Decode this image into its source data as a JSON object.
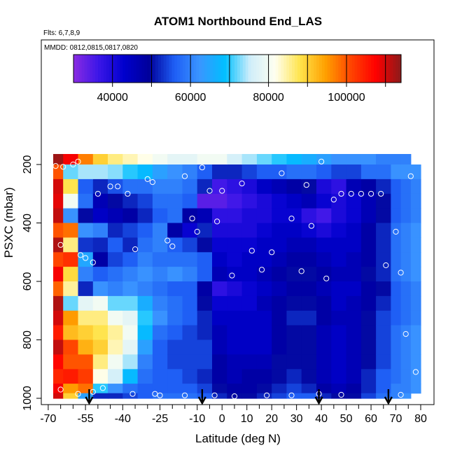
{
  "chart_data": {
    "type": "heatmap",
    "title": "ATOM1 Northbound End_LAS",
    "flights_label": "Flts: 6,7,8,9",
    "dates_label": "MMDD: 0812,0815,0817,0820",
    "xlabel": "Latitude (deg N)",
    "ylabel": "PSXC (mbar)",
    "xlim": [
      -70,
      82
    ],
    "ylim": [
      1000,
      100
    ],
    "x_ticks": [
      "-70",
      "-55",
      "-40",
      "-25",
      "-10",
      "0",
      "10",
      "20",
      "30",
      "40",
      "50",
      "60",
      "70",
      "80"
    ],
    "x_tick_values": [
      -70,
      -55,
      -40,
      -25,
      -10,
      0,
      10,
      20,
      30,
      40,
      50,
      60,
      70,
      80
    ],
    "x_minor_ticks": [
      -65,
      -60,
      -50,
      -45,
      -35,
      -30,
      -20,
      -15,
      -5,
      5,
      15,
      25,
      35,
      45,
      55,
      65,
      75
    ],
    "y_ticks": [
      "1000",
      "800",
      "600",
      "400",
      "200"
    ],
    "y_tick_values": [
      1000,
      800,
      600,
      400,
      200
    ],
    "colorbar": {
      "range": [
        30000,
        114000
      ],
      "tick_values": [
        40000,
        60000,
        80000,
        100000
      ],
      "tick_labels": [
        "40000",
        "60000",
        "80000",
        "100000"
      ],
      "colors": [
        "#8a2be2",
        "#3b16e8",
        "#0000cd",
        "#00009a",
        "#1e5ef5",
        "#3a95ff",
        "#00bfff",
        "#cfeefa",
        "#fffff0",
        "#ffe34a",
        "#ffa000",
        "#ff4500",
        "#ff0000",
        "#8b1a1a"
      ]
    },
    "columns": [
      {
        "lat_start": -68,
        "lat_end": -64,
        "values": [
          113000,
          100000,
          110000,
          109000,
          111000,
          100000,
          112000,
          101000,
          108000,
          99000,
          112000,
          110000,
          105000,
          111000,
          107000,
          104000,
          108000,
          110000
        ]
      },
      {
        "lat_start": -64,
        "lat_end": -58,
        "values": [
          108000,
          72000,
          88000,
          80000,
          62000,
          98000,
          86000,
          103000,
          89000,
          85000,
          72000,
          95000,
          92000,
          101000,
          100000,
          105000,
          95000,
          90000
        ]
      },
      {
        "lat_start": -58,
        "lat_end": -52,
        "values": [
          97000,
          74000,
          56000,
          58000,
          50000,
          62000,
          53000,
          65000,
          60000,
          52000,
          78000,
          86000,
          90000,
          93000,
          100000,
          102000,
          98000,
          64000
        ]
      },
      {
        "lat_start": -52,
        "lat_end": -46,
        "values": [
          90000,
          74000,
          52000,
          46000,
          44000,
          60000,
          52000,
          48000,
          56000,
          62000,
          80000,
          86000,
          88000,
          90000,
          86000,
          82000,
          70000,
          52000
        ]
      },
      {
        "lat_start": -46,
        "lat_end": -40,
        "values": [
          86000,
          73000,
          55000,
          50000,
          46000,
          52000,
          56000,
          54000,
          58000,
          60000,
          72000,
          80000,
          85000,
          84000,
          80000,
          76000,
          62000,
          52000
        ]
      },
      {
        "lat_start": -40,
        "lat_end": -34,
        "values": [
          84000,
          70000,
          58000,
          52000,
          48000,
          54000,
          52000,
          56000,
          60000,
          62000,
          72000,
          78000,
          80000,
          78000,
          74000,
          68000,
          58000,
          54000
        ]
      },
      {
        "lat_start": -34,
        "lat_end": -28,
        "values": [
          82000,
          68000,
          58000,
          54000,
          52000,
          56000,
          58000,
          60000,
          62000,
          60000,
          66000,
          70000,
          68000,
          64000,
          60000,
          58000,
          56000,
          56000
        ]
      },
      {
        "lat_start": -28,
        "lat_end": -22,
        "values": [
          80000,
          64000,
          60000,
          58000,
          56000,
          60000,
          60000,
          58000,
          60000,
          58000,
          60000,
          62000,
          58000,
          56000,
          56000,
          56000,
          56000,
          58000
        ]
      },
      {
        "lat_start": -22,
        "lat_end": -16,
        "values": [
          78000,
          62000,
          60000,
          58000,
          58000,
          48000,
          56000,
          58000,
          62000,
          56000,
          58000,
          58000,
          56000,
          54000,
          54000,
          56000,
          56000,
          58000
        ]
      },
      {
        "lat_start": -16,
        "lat_end": -10,
        "values": [
          78000,
          60000,
          58000,
          56000,
          48000,
          42000,
          54000,
          58000,
          60000,
          56000,
          56000,
          56000,
          54000,
          54000,
          54000,
          54000,
          56000,
          58000
        ]
      },
      {
        "lat_start": -10,
        "lat_end": -4,
        "values": [
          80000,
          56000,
          52000,
          34000,
          46000,
          52000,
          50000,
          56000,
          56000,
          48000,
          50000,
          52000,
          52000,
          54000,
          54000,
          52000,
          54000,
          56000
        ]
      },
      {
        "lat_start": -4,
        "lat_end": 2,
        "values": [
          80000,
          52000,
          36000,
          34000,
          38000,
          40000,
          42000,
          44000,
          46000,
          38000,
          42000,
          44000,
          46000,
          46000,
          48000,
          48000,
          50000,
          52000
        ]
      },
      {
        "lat_start": 2,
        "lat_end": 8,
        "values": [
          76000,
          52000,
          38000,
          36000,
          38000,
          40000,
          42000,
          42000,
          44000,
          40000,
          42000,
          44000,
          44000,
          44000,
          46000,
          46000,
          48000,
          50000
        ]
      },
      {
        "lat_start": 8,
        "lat_end": 14,
        "values": [
          74000,
          54000,
          40000,
          38000,
          40000,
          40000,
          42000,
          44000,
          44000,
          42000,
          42000,
          44000,
          44000,
          44000,
          46000,
          48000,
          48000,
          50000
        ]
      },
      {
        "lat_start": 14,
        "lat_end": 20,
        "values": [
          72000,
          56000,
          44000,
          40000,
          40000,
          42000,
          44000,
          44000,
          46000,
          44000,
          46000,
          44000,
          44000,
          44000,
          46000,
          48000,
          50000,
          52000
        ]
      },
      {
        "lat_start": 20,
        "lat_end": 26,
        "values": [
          70000,
          56000,
          46000,
          42000,
          42000,
          44000,
          44000,
          46000,
          48000,
          46000,
          48000,
          48000,
          48000,
          48000,
          50000,
          50000,
          52000,
          54000
        ]
      },
      {
        "lat_start": 26,
        "lat_end": 32,
        "values": [
          68000,
          58000,
          48000,
          44000,
          42000,
          44000,
          46000,
          48000,
          50000,
          48000,
          50000,
          52000,
          50000,
          50000,
          50000,
          52000,
          54000,
          56000
        ]
      },
      {
        "lat_start": 32,
        "lat_end": 38,
        "values": [
          66000,
          58000,
          50000,
          46000,
          38000,
          42000,
          46000,
          48000,
          50000,
          48000,
          50000,
          52000,
          50000,
          50000,
          50000,
          50000,
          52000,
          56000
        ]
      },
      {
        "lat_start": 38,
        "lat_end": 44,
        "values": [
          64000,
          56000,
          40000,
          42000,
          36000,
          40000,
          44000,
          46000,
          48000,
          46000,
          48000,
          48000,
          46000,
          46000,
          46000,
          46000,
          48000,
          52000
        ]
      },
      {
        "lat_start": 44,
        "lat_end": 50,
        "values": [
          62000,
          54000,
          38000,
          40000,
          40000,
          42000,
          44000,
          44000,
          46000,
          44000,
          44000,
          46000,
          44000,
          44000,
          44000,
          44000,
          46000,
          50000
        ]
      },
      {
        "lat_start": 50,
        "lat_end": 56,
        "values": [
          62000,
          54000,
          46000,
          42000,
          42000,
          44000,
          44000,
          46000,
          46000,
          44000,
          46000,
          46000,
          46000,
          46000,
          46000,
          46000,
          48000,
          50000
        ]
      },
      {
        "lat_start": 56,
        "lat_end": 62,
        "values": [
          62000,
          58000,
          48000,
          46000,
          46000,
          48000,
          48000,
          48000,
          50000,
          48000,
          48000,
          50000,
          50000,
          50000,
          50000,
          52000,
          52000,
          54000
        ]
      },
      {
        "lat_start": 62,
        "lat_end": 68,
        "values": [
          60000,
          58000,
          52000,
          50000,
          50000,
          52000,
          52000,
          52000,
          52000,
          50000,
          52000,
          54000,
          54000,
          54000,
          54000,
          56000,
          56000,
          58000
        ]
      },
      {
        "lat_start": 68,
        "lat_end": 72,
        "values": [
          60000,
          62000,
          56000,
          56000,
          56000,
          58000,
          58000,
          58000,
          58000,
          56000,
          56000,
          56000,
          58000,
          58000,
          58000,
          58000,
          60000,
          60000
        ]
      },
      {
        "lat_start": 72,
        "lat_end": 76,
        "values": [
          60000,
          62000,
          58000,
          58000,
          58000,
          60000,
          60000,
          60000,
          60000,
          58000,
          58000,
          58000,
          60000,
          60000,
          60000,
          60000,
          60000,
          62000
        ]
      },
      {
        "lat_start": 76,
        "lat_end": 80,
        "values": [
          null,
          62000,
          60000,
          60000,
          60000,
          62000,
          62000,
          62000,
          62000,
          60000,
          60000,
          60000,
          62000,
          62000,
          62000,
          62000,
          62000,
          null
        ]
      }
    ],
    "pressure_levels": [
      175,
      225,
      275,
      325,
      375,
      425,
      475,
      525,
      575,
      625,
      675,
      725,
      775,
      825,
      875,
      925,
      975,
      990
    ],
    "sample_points": [
      {
        "lat": -65,
        "p": 970
      },
      {
        "lat": -58,
        "p": 985
      },
      {
        "lat": -52,
        "p": 978
      },
      {
        "lat": -48,
        "p": 965
      },
      {
        "lat": -36,
        "p": 985
      },
      {
        "lat": -27,
        "p": 985
      },
      {
        "lat": -25,
        "p": 990
      },
      {
        "lat": -15,
        "p": 990
      },
      {
        "lat": -3,
        "p": 990
      },
      {
        "lat": 5,
        "p": 993
      },
      {
        "lat": 18,
        "p": 990
      },
      {
        "lat": 28,
        "p": 990
      },
      {
        "lat": 39,
        "p": 985
      },
      {
        "lat": 48,
        "p": 988
      },
      {
        "lat": 72,
        "p": 988
      },
      {
        "lat": -67,
        "p": 205
      },
      {
        "lat": -64,
        "p": 208
      },
      {
        "lat": -60,
        "p": 200
      },
      {
        "lat": -58,
        "p": 190
      },
      {
        "lat": -65,
        "p": 475
      },
      {
        "lat": -57,
        "p": 510
      },
      {
        "lat": -55,
        "p": 520
      },
      {
        "lat": -52,
        "p": 535
      },
      {
        "lat": -50,
        "p": 300
      },
      {
        "lat": -45,
        "p": 275
      },
      {
        "lat": -42,
        "p": 275
      },
      {
        "lat": -38,
        "p": 300
      },
      {
        "lat": -35,
        "p": 490
      },
      {
        "lat": -30,
        "p": 250
      },
      {
        "lat": -28,
        "p": 260
      },
      {
        "lat": -22,
        "p": 460
      },
      {
        "lat": -20,
        "p": 480
      },
      {
        "lat": -15,
        "p": 240
      },
      {
        "lat": -12,
        "p": 385
      },
      {
        "lat": -10,
        "p": 430
      },
      {
        "lat": -8,
        "p": 210
      },
      {
        "lat": -5,
        "p": 290
      },
      {
        "lat": -2,
        "p": 395
      },
      {
        "lat": 0,
        "p": 290
      },
      {
        "lat": 4,
        "p": 580
      },
      {
        "lat": 8,
        "p": 265
      },
      {
        "lat": 12,
        "p": 495
      },
      {
        "lat": 16,
        "p": 560
      },
      {
        "lat": 20,
        "p": 500
      },
      {
        "lat": 24,
        "p": 230
      },
      {
        "lat": 28,
        "p": 385
      },
      {
        "lat": 32,
        "p": 565
      },
      {
        "lat": 34,
        "p": 270
      },
      {
        "lat": 36,
        "p": 410
      },
      {
        "lat": 40,
        "p": 190
      },
      {
        "lat": 42,
        "p": 590
      },
      {
        "lat": 45,
        "p": 320
      },
      {
        "lat": 48,
        "p": 300
      },
      {
        "lat": 52,
        "p": 300
      },
      {
        "lat": 56,
        "p": 300
      },
      {
        "lat": 60,
        "p": 300
      },
      {
        "lat": 64,
        "p": 300
      },
      {
        "lat": 66,
        "p": 545
      },
      {
        "lat": 70,
        "p": 430
      },
      {
        "lat": 72,
        "p": 570
      },
      {
        "lat": 74,
        "p": 780
      },
      {
        "lat": 76,
        "p": 240
      },
      {
        "lat": 78,
        "p": 910
      }
    ],
    "arrows_lat": [
      -53.5,
      -8,
      39,
      67
    ]
  }
}
